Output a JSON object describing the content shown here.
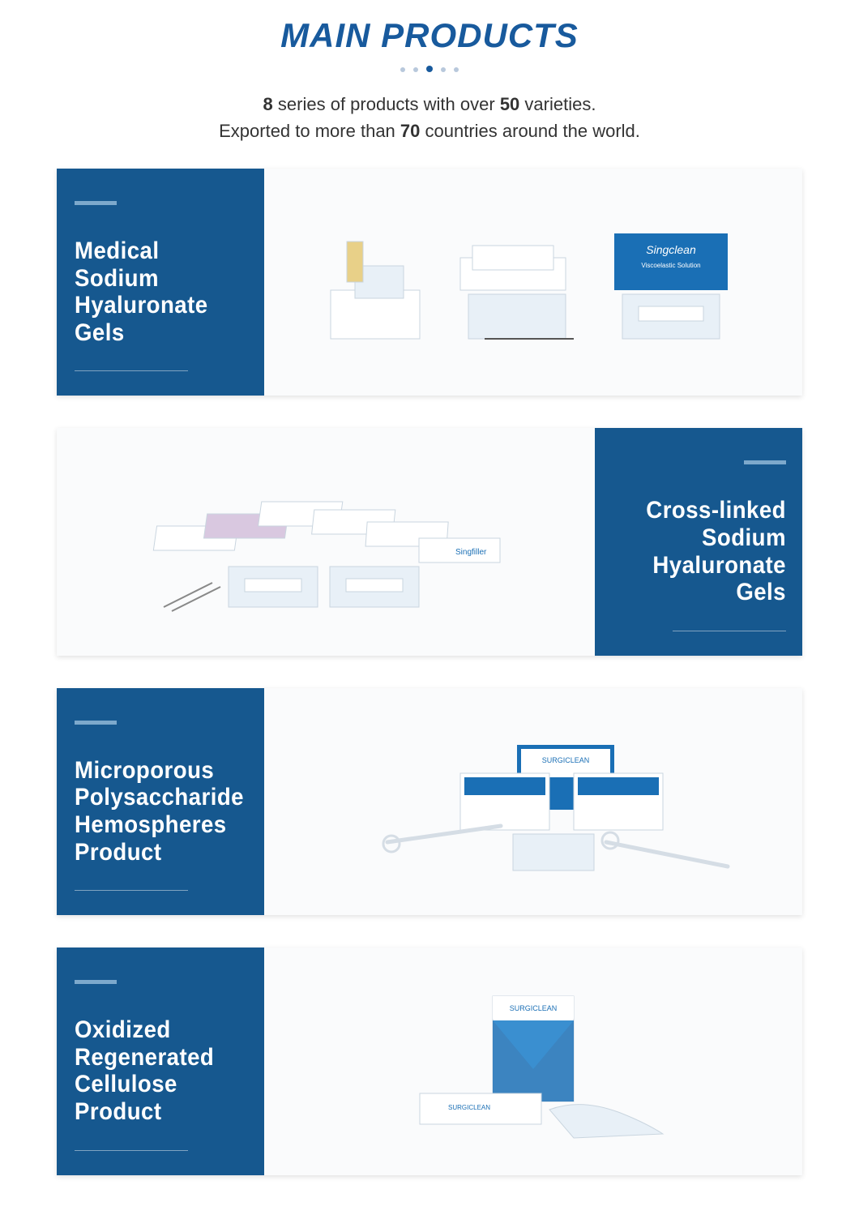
{
  "header": {
    "title": "MAIN PRODUCTS",
    "title_color": "#185a9d",
    "subtitle_parts": [
      {
        "t": "8",
        "b": true
      },
      {
        "t": " series of products with over ",
        "b": false
      },
      {
        "t": "50",
        "b": true
      },
      {
        "t": " varieties.",
        "b": false
      },
      {
        "t": "\n",
        "b": false
      },
      {
        "t": "Exported to more than ",
        "b": false
      },
      {
        "t": "70",
        "b": true
      },
      {
        "t": " countries around the world.",
        "b": false
      }
    ]
  },
  "colors": {
    "panel_bg": "#16588f",
    "panel_top_line": "#7da9cc",
    "page_bg": "#ffffff",
    "image_bg": "#fafbfc",
    "box_blue": "#1a6fb5",
    "box_light": "#e8f0f7",
    "box_white": "#ffffff",
    "outline": "#c9d5df"
  },
  "cards": [
    {
      "side": "left",
      "title": "Medical Sodium Hyaluronate Gels",
      "image": "three-product-groups"
    },
    {
      "side": "right",
      "title": "Cross-linked Sodium Hyaluronate Gels",
      "image": "syringe-boxes-spread"
    },
    {
      "side": "left",
      "title": "Microporous Polysaccharide Hemospheres Product",
      "image": "hemostat-boxes-applicators"
    },
    {
      "side": "left",
      "title": "Oxidized Regenerated Cellulose Product",
      "image": "cellulose-box-gauze"
    }
  ]
}
